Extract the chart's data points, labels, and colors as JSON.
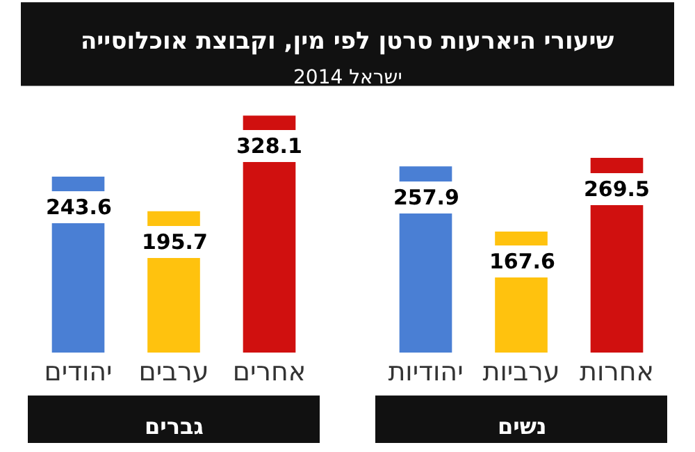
{
  "chart_data": [
    {
      "type": "bar",
      "title": "שיעורי היארעות סרטן לפי מין, וקבוצת אוכלוסייה",
      "subtitle": "ישראל 2014",
      "xlabel": "נשים",
      "categories": [
        "יהודיות",
        "ערביות",
        "אחרות"
      ],
      "values": [
        257.9,
        167.6,
        269.5
      ],
      "colors": [
        "#4a7fd4",
        "#ffc20e",
        "#d0100f"
      ],
      "data_labels": true
    },
    {
      "type": "bar",
      "xlabel": "גברים",
      "categories": [
        "יהודים",
        "ערבים",
        "אחרים"
      ],
      "values": [
        243.6,
        195.7,
        328.1
      ],
      "colors": [
        "#4a7fd4",
        "#ffc20e",
        "#d0100f"
      ],
      "data_labels": true
    }
  ]
}
